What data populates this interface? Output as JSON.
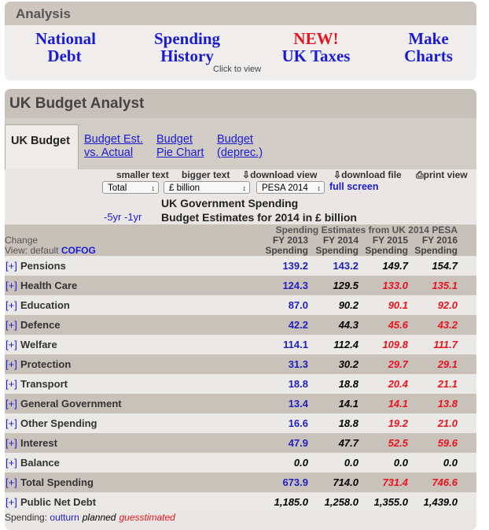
{
  "nav": {
    "title": "Analysis",
    "links": [
      {
        "text": "National Debt"
      },
      {
        "text": "Spending History"
      },
      {
        "badge": "NEW!",
        "text": "UK Taxes"
      },
      {
        "text": "Make Charts"
      }
    ],
    "hint": "Click to view"
  },
  "app": {
    "title": "UK Budget Analyst",
    "tabs": [
      "UK Budget",
      "Budget Est. vs. Actual",
      "Budget Pie Chart",
      "Budget (deprec.)"
    ],
    "toolbar": {
      "text_size": [
        "smaller text",
        "bigger text"
      ],
      "downloads": [
        "download view",
        "download file"
      ],
      "print": "print view"
    },
    "selects": [
      "Total",
      "£ billion",
      "PESA 2014"
    ],
    "full_screen": "full screen",
    "heading": {
      "title": "UK Government Spending",
      "nav": "-5yr -1yr",
      "subtitle": "Budget Estimates for 2014 in £ billion"
    }
  },
  "table": {
    "caption": "Spending Estimates from UK 2014 PESA",
    "change": "Change",
    "view": "View: default",
    "cofog": "COFOG",
    "columns": [
      [
        "FY 2013",
        "Spending"
      ],
      [
        "FY 2014",
        "Spending"
      ],
      [
        "FY 2015",
        "Spending"
      ],
      [
        "FY 2016",
        "Spending"
      ]
    ],
    "expand": "[+]",
    "rows": [
      {
        "label": "Pensions",
        "cells": [
          "139.2",
          "143.2",
          "149.7",
          "154.7"
        ],
        "colors": [
          "#1f1fc0",
          "#1f1fc0",
          "#000000",
          "#000000"
        ]
      },
      {
        "label": "Health Care",
        "cells": [
          "124.3",
          "129.5",
          "133.0",
          "135.1"
        ],
        "colors": [
          "#1f1fc0",
          "#000000",
          "#e8131f",
          "#e8131f"
        ]
      },
      {
        "label": "Education",
        "cells": [
          "87.0",
          "90.2",
          "90.1",
          "92.0"
        ],
        "colors": [
          "#1f1fc0",
          "#000000",
          "#e8131f",
          "#e8131f"
        ]
      },
      {
        "label": "Defence",
        "cells": [
          "42.2",
          "44.3",
          "45.6",
          "43.2"
        ],
        "colors": [
          "#1f1fc0",
          "#000000",
          "#e8131f",
          "#e8131f"
        ]
      },
      {
        "label": "Welfare",
        "cells": [
          "114.1",
          "112.4",
          "109.8",
          "111.7"
        ],
        "colors": [
          "#1f1fc0",
          "#000000",
          "#e8131f",
          "#e8131f"
        ]
      },
      {
        "label": "Protection",
        "cells": [
          "31.3",
          "30.2",
          "29.7",
          "29.1"
        ],
        "colors": [
          "#1f1fc0",
          "#000000",
          "#e8131f",
          "#e8131f"
        ]
      },
      {
        "label": "Transport",
        "cells": [
          "18.8",
          "18.8",
          "20.4",
          "21.1"
        ],
        "colors": [
          "#1f1fc0",
          "#000000",
          "#e8131f",
          "#e8131f"
        ]
      },
      {
        "label": "General Government",
        "cells": [
          "13.4",
          "14.1",
          "14.1",
          "13.8"
        ],
        "colors": [
          "#1f1fc0",
          "#000000",
          "#e8131f",
          "#e8131f"
        ]
      },
      {
        "label": "Other Spending",
        "cells": [
          "16.6",
          "18.8",
          "19.2",
          "21.0"
        ],
        "colors": [
          "#1f1fc0",
          "#000000",
          "#e8131f",
          "#e8131f"
        ]
      },
      {
        "label": "Interest",
        "cells": [
          "47.9",
          "47.7",
          "52.5",
          "59.6"
        ],
        "colors": [
          "#1f1fc0",
          "#000000",
          "#e8131f",
          "#e8131f"
        ]
      },
      {
        "label": "Balance",
        "cells": [
          "0.0",
          "0.0",
          "0.0",
          "0.0"
        ],
        "colors": [
          "#000000",
          "#000000",
          "#000000",
          "#000000"
        ]
      },
      {
        "label": "Total Spending",
        "cells": [
          "673.9",
          "714.0",
          "731.4",
          "746.6"
        ],
        "colors": [
          "#1f1fc0",
          "#000000",
          "#e8131f",
          "#e8131f"
        ]
      },
      {
        "label": "Public Net Debt",
        "cells": [
          "1,185.0",
          "1,258.0",
          "1,355.0",
          "1,439.0"
        ],
        "colors": [
          "#000000",
          "#000000",
          "#000000",
          "#000000"
        ]
      }
    ]
  },
  "legend": {
    "label": "Spending:",
    "items": [
      {
        "text": "outturn",
        "color": "#1f1fc0"
      },
      {
        "text": "planned",
        "color": "#000000"
      },
      {
        "text": "guesstimated",
        "color": "#e8131f"
      }
    ]
  }
}
